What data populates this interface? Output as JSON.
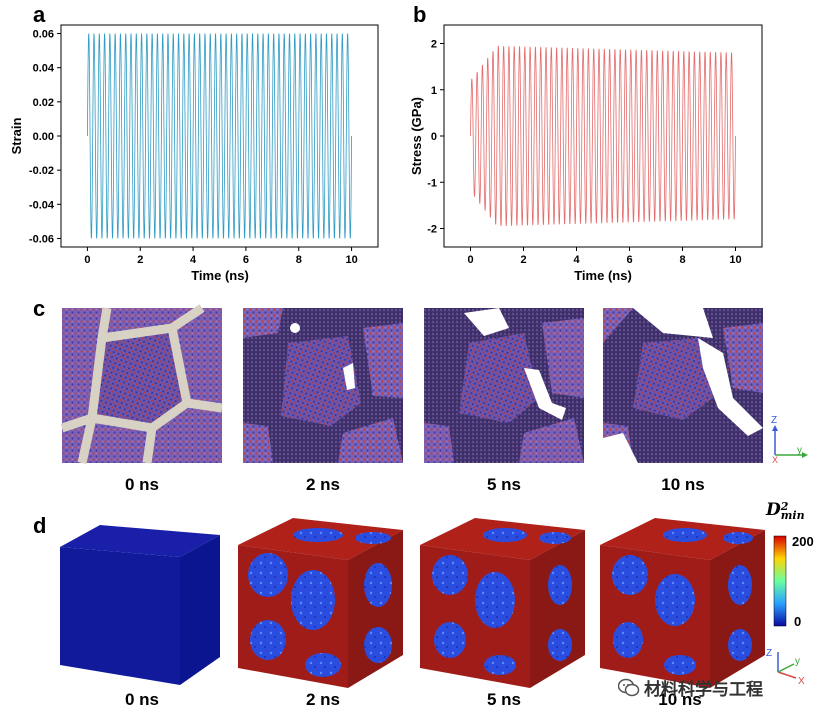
{
  "panels": {
    "a": "a",
    "b": "b",
    "c": "c",
    "d": "d"
  },
  "chart_data": [
    {
      "type": "line",
      "panel": "a",
      "xlabel": "Time (ns)",
      "ylabel": "Strain",
      "xlim": [
        -1,
        11
      ],
      "ylim": [
        -0.065,
        0.065
      ],
      "xticks": [
        "0",
        "2",
        "4",
        "6",
        "8",
        "10"
      ],
      "yticks": [
        "0.06",
        "0.04",
        "0.02",
        "0.00",
        "-0.02",
        "-0.04",
        "-0.06"
      ],
      "color": "#2f9bc4",
      "amplitude": 0.06,
      "period_ns": 0.2,
      "x_range": [
        0,
        10
      ]
    },
    {
      "type": "line",
      "panel": "b",
      "xlabel": "Time (ns)",
      "ylabel": "Stress (GPa)",
      "xlim": [
        -1,
        11
      ],
      "ylim": [
        -2.4,
        2.4
      ],
      "xticks": [
        "0",
        "2",
        "4",
        "6",
        "8",
        "10"
      ],
      "yticks": [
        "2",
        "1",
        "0",
        "-1",
        "-2"
      ],
      "color": "#e46b6b",
      "amplitude_start": 1.2,
      "amplitude_peak": 1.95,
      "amplitude_end": 1.8,
      "period_ns": 0.2,
      "x_range": [
        0,
        10
      ]
    }
  ],
  "row_c": {
    "labels": [
      "0 ns",
      "2 ns",
      "5 ns",
      "10 ns"
    ],
    "axes": {
      "z": "Z",
      "x": "X",
      "y": "y"
    }
  },
  "row_d": {
    "labels": [
      "0 ns",
      "2 ns",
      "5 ns",
      "10 ns"
    ],
    "colorbar": {
      "title_main": "D",
      "title_sup": "2",
      "title_sub": "min",
      "max": "200",
      "min": "0"
    },
    "axes": {
      "z": "Z",
      "x": "X",
      "y": "y"
    }
  },
  "watermark": {
    "text": "材料科学与工程"
  }
}
